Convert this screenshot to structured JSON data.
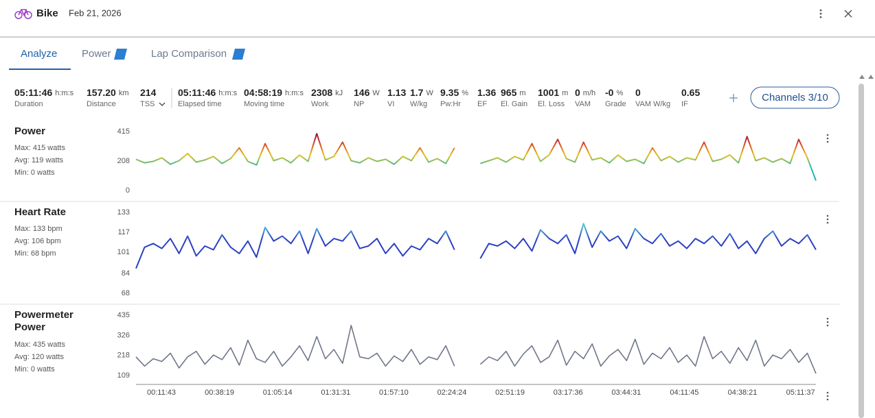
{
  "header": {
    "title": "Bike",
    "date": "Feb 21, 2026"
  },
  "tabs": [
    "Analyze",
    "Power",
    "Lap Comparison"
  ],
  "metrics": [
    {
      "value": "05:11:46",
      "unit": "h:m:s",
      "label": "Duration"
    },
    {
      "value": "157.20",
      "unit": "km",
      "label": "Distance"
    },
    {
      "value": "214",
      "label": "TSS"
    },
    {
      "value": "05:11:46",
      "unit": "h:m:s",
      "label": "Elapsed time"
    },
    {
      "value": "04:58:19",
      "unit": "h:m:s",
      "label": "Moving time"
    },
    {
      "value": "2308",
      "unit": "kJ",
      "label": "Work"
    },
    {
      "value": "146",
      "unit": "W",
      "label": "NP"
    },
    {
      "value": "1.13",
      "label": "VI"
    },
    {
      "value": "1.7",
      "unit": "W",
      "label": "W/kg"
    },
    {
      "value": "9.35",
      "unit": "%",
      "label": "Pw:Hr"
    },
    {
      "value": "1.36",
      "label": "EF"
    },
    {
      "value": "965",
      "unit": "m",
      "label": "El. Gain"
    },
    {
      "value": "1001",
      "unit": "m",
      "label": "El. Loss"
    },
    {
      "value": "0",
      "unit": "m/h",
      "label": "VAM"
    },
    {
      "value": "-0",
      "unit": "%",
      "label": "Grade"
    },
    {
      "value": "0",
      "label": "VAM W/kg"
    },
    {
      "value": "0.65",
      "label": "IF"
    }
  ],
  "channels_button": "Channels 3/10",
  "chart_data": [
    {
      "type": "line",
      "title": "Power",
      "stats": [
        "Max: 415 watts",
        "Avg: 119 watts",
        "Min: 0 watts"
      ],
      "ylim": [
        0,
        415
      ],
      "yticks": [
        0,
        208,
        415
      ],
      "colors": [
        "#1a9fd0",
        "#1fb5b8",
        "#22b8b0",
        "#e8c21a",
        "#d8402a",
        "#7a0f3c"
      ],
      "values": [
        220,
        195,
        205,
        230,
        185,
        210,
        260,
        200,
        215,
        240,
        190,
        225,
        300,
        205,
        180,
        330,
        210,
        230,
        195,
        250,
        205,
        400,
        215,
        240,
        340,
        210,
        195,
        230,
        205,
        220,
        185,
        240,
        210,
        300,
        200,
        225,
        190,
        300,
        null,
        null,
        190,
        210,
        230,
        200,
        240,
        215,
        330,
        205,
        250,
        360,
        225,
        200,
        340,
        215,
        230,
        195,
        250,
        205,
        220,
        190,
        300,
        210,
        240,
        200,
        230,
        215,
        340,
        205,
        220,
        250,
        195,
        380,
        210,
        230,
        200,
        225,
        190,
        360,
        230,
        70
      ]
    },
    {
      "type": "line",
      "title": "Heart Rate",
      "stats": [
        "Max: 133 bpm",
        "Avg: 106 bpm",
        "Min: 68 bpm"
      ],
      "ylim": [
        68,
        133
      ],
      "yticks": [
        68,
        84,
        101,
        117,
        133
      ],
      "colors": [
        "#2a3fc4",
        "#2a3fc4",
        "#2a3fc4",
        "#2a3fc4",
        "#2a3fc4",
        "#4fc0d8",
        "#a8d040"
      ],
      "values": [
        88,
        105,
        108,
        104,
        112,
        100,
        114,
        98,
        106,
        103,
        115,
        105,
        100,
        110,
        97,
        121,
        110,
        114,
        108,
        118,
        100,
        120,
        106,
        112,
        110,
        118,
        104,
        106,
        112,
        100,
        108,
        98,
        106,
        103,
        112,
        108,
        118,
        103,
        null,
        null,
        96,
        108,
        106,
        110,
        104,
        112,
        102,
        119,
        112,
        108,
        115,
        100,
        124,
        105,
        118,
        110,
        114,
        104,
        120,
        112,
        108,
        116,
        106,
        110,
        104,
        112,
        108,
        114,
        106,
        116,
        104,
        110,
        100,
        112,
        118,
        106,
        112,
        108,
        115,
        103
      ]
    },
    {
      "type": "line",
      "title": "Powermeter Power",
      "stats": [
        "Max: 435 watts",
        "Avg: 120 watts",
        "Min: 0 watts"
      ],
      "ylim": [
        61,
        435
      ],
      "yticks": [
        109,
        218,
        326,
        435
      ],
      "color": "#6f7689",
      "values": [
        210,
        160,
        200,
        185,
        230,
        150,
        210,
        240,
        170,
        220,
        195,
        260,
        165,
        300,
        200,
        180,
        240,
        160,
        210,
        270,
        190,
        320,
        200,
        250,
        175,
        380,
        210,
        200,
        230,
        160,
        215,
        185,
        250,
        170,
        210,
        195,
        270,
        160,
        null,
        null,
        170,
        210,
        190,
        240,
        160,
        225,
        270,
        180,
        210,
        300,
        165,
        240,
        200,
        280,
        160,
        215,
        250,
        190,
        305,
        170,
        230,
        200,
        260,
        180,
        220,
        160,
        320,
        200,
        240,
        175,
        260,
        190,
        300,
        160,
        220,
        200,
        250,
        180,
        230,
        120
      ],
      "x_labels": [
        "00:11:43",
        "00:38:19",
        "01:05:14",
        "01:31:31",
        "01:57:10",
        "02:24:24",
        "02:51:19",
        "03:17:36",
        "03:44:31",
        "04:11:45",
        "04:38:21",
        "05:11:37"
      ]
    }
  ]
}
